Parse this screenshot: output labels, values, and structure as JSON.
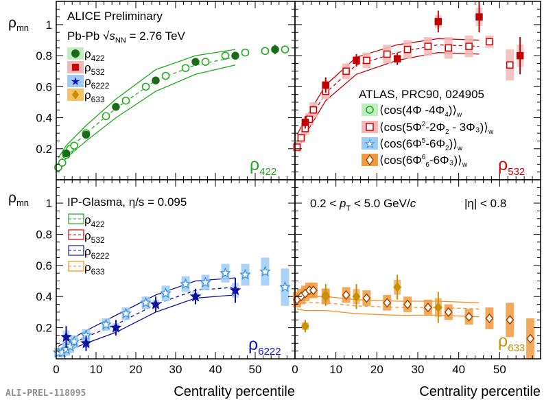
{
  "chart_data": [
    {
      "type": "scatter",
      "panel": "top-left",
      "xlim": [
        0,
        60
      ],
      "ylim": [
        0,
        1.15
      ],
      "yticks": [
        "0.2",
        "0.4",
        "0.6",
        "0.8",
        "1"
      ],
      "ylabel_main": "ρ",
      "ylabel_sub": "mn",
      "header": "ALICE Preliminary",
      "system_prefix": "Pb-Pb ",
      "system_sqrt": "√",
      "system_s": "s",
      "system_sub": "NN",
      "system_suffix": " = 2.76 TeV",
      "panel_label_main": "ρ",
      "panel_label_sub": "422",
      "panel_label_color": "#1fa81f",
      "color": "#1fa81f",
      "legend": [
        {
          "main": "ρ",
          "sub": "422",
          "color": "#1a6b1a",
          "marker": "circle"
        },
        {
          "main": "ρ",
          "sub": "532",
          "color": "#d40000",
          "marker": "square"
        },
        {
          "main": "ρ",
          "sub": "6222",
          "color": "#1010c8",
          "marker": "star"
        },
        {
          "main": "ρ",
          "sub": "633",
          "color": "#c79000",
          "marker": "diamond"
        }
      ],
      "alice": {
        "x": [
          2.5,
          7.5,
          15,
          25,
          35,
          45,
          55
        ],
        "y": [
          0.17,
          0.29,
          0.47,
          0.64,
          0.76,
          0.8,
          0.84
        ],
        "err": [
          0.01,
          0.01,
          0.01,
          0.01,
          0.01,
          0.02,
          0.03
        ]
      },
      "atlas": {
        "x": [
          0.5,
          1.5,
          2.5,
          3.5,
          4.5,
          7.5,
          12.5,
          17.5,
          22.5,
          27.5,
          32.5,
          37.5,
          42.5,
          47.5,
          52.5,
          57.5
        ],
        "y": [
          0.08,
          0.11,
          0.16,
          0.2,
          0.22,
          0.3,
          0.41,
          0.51,
          0.6,
          0.67,
          0.72,
          0.76,
          0.8,
          0.82,
          0.83,
          0.84
        ]
      },
      "model": {
        "x": [
          0.5,
          2.5,
          7.5,
          15,
          25,
          35,
          45
        ],
        "y": [
          0.1,
          0.18,
          0.3,
          0.46,
          0.64,
          0.74,
          0.79
        ],
        "upper": [
          0.14,
          0.22,
          0.35,
          0.52,
          0.71,
          0.8,
          0.84
        ],
        "lower": [
          0.06,
          0.14,
          0.25,
          0.4,
          0.57,
          0.68,
          0.74
        ]
      }
    },
    {
      "type": "scatter",
      "panel": "top-right",
      "xlim": [
        0,
        60
      ],
      "ylim": [
        0,
        1.15
      ],
      "header": "ATLAS, PRC90, 024905",
      "panel_label_main": "ρ",
      "panel_label_sub": "532",
      "panel_label_color": "#d40000",
      "color": "#d40000",
      "legend": [
        {
          "text": "⟨cos(4Φ⁻4Φ₄)⟩w",
          "marker": "circle",
          "color": "#1fa81f",
          "band": "#bfeebf"
        },
        {
          "text": "⟨cos(5Φ²-2Φ₂ - 3Φ₃)⟩w",
          "marker": "square",
          "color": "#d40000",
          "band": "#f5b8b8"
        },
        {
          "text": "⟨cos(6Φ⁵-6Φ₂)⟩w",
          "marker": "star",
          "color": "#3b8fe0",
          "band": "#9ccbf3"
        },
        {
          "text": "⟨cos(6Φ⁶₆-6Φ₃)⟩w",
          "marker": "diamond",
          "color": "#a34400",
          "band": "#f09a3e"
        }
      ],
      "legend_rows": [
        {
          "pre": "⟨cos(4Φ",
          "sup1": "",
          "mid": " -4Φ",
          "sub1": "4",
          "post": ")⟩",
          "w": "w"
        },
        {
          "pre": "⟨cos(5Φ",
          "sup1": "2",
          "mid": "-2Φ",
          "sub1": "2",
          "post": " - 3Φ₃)⟩",
          "w": "w"
        },
        {
          "pre": "⟨cos(6Φ",
          "sup1": "5",
          "mid": "-6Φ",
          "sub1": "2",
          "post": ")⟩",
          "w": "w"
        },
        {
          "pre": "⟨cos(6Φ",
          "sup1": "6",
          "mid": "6",
          "sub1": "",
          "post": "-6Φ₃)⟩",
          "w": "w"
        }
      ],
      "alice": {
        "x": [
          2.5,
          7.5,
          15,
          25,
          35,
          45,
          55
        ],
        "y": [
          0.37,
          0.61,
          0.77,
          0.78,
          1.02,
          1.05,
          0.8
        ],
        "err": [
          0.04,
          0.05,
          0.04,
          0.04,
          0.07,
          0.1,
          0.12
        ]
      },
      "atlas": {
        "x": [
          0.5,
          1.5,
          2.5,
          3.5,
          4.5,
          7.5,
          12.5,
          17.5,
          22.5,
          27.5,
          32.5,
          37.5,
          42.5,
          47.5,
          52.5
        ],
        "y": [
          0.21,
          0.27,
          0.33,
          0.39,
          0.45,
          0.57,
          0.7,
          0.77,
          0.81,
          0.84,
          0.86,
          0.85,
          0.86,
          0.89,
          0.74
        ],
        "syst": [
          0.03,
          0.03,
          0.04,
          0.04,
          0.05,
          0.05,
          0.05,
          0.05,
          0.06,
          0.06,
          0.06,
          0.07,
          0.07,
          0.04,
          0.1
        ]
      },
      "model": {
        "x": [
          0.5,
          2.5,
          7.5,
          15,
          25,
          35,
          45
        ],
        "y": [
          0.24,
          0.34,
          0.56,
          0.74,
          0.82,
          0.87,
          0.86
        ],
        "upper": [
          0.29,
          0.39,
          0.61,
          0.79,
          0.87,
          0.91,
          0.9
        ],
        "lower": [
          0.19,
          0.29,
          0.51,
          0.68,
          0.77,
          0.82,
          0.81
        ]
      }
    },
    {
      "type": "scatter",
      "panel": "bottom-left",
      "xlim": [
        0,
        60
      ],
      "ylim": [
        0,
        1.15
      ],
      "yticks": [
        "0.2",
        "0.4",
        "0.6",
        "0.8",
        "1"
      ],
      "xticks": [
        "0",
        "10",
        "20",
        "30",
        "40",
        "50"
      ],
      "xlabel": "Centrality percentile",
      "ylabel_main": "ρ",
      "ylabel_sub": "mn",
      "header": "IP-Glasma, η/s = 0.095",
      "panel_label_main": "ρ",
      "panel_label_sub": "6222",
      "panel_label_color": "#1010c8",
      "color": "#1010c8",
      "legend": [
        {
          "main": "ρ",
          "sub": "422",
          "color": "#1fa81f"
        },
        {
          "main": "ρ",
          "sub": "532",
          "color": "#d40000"
        },
        {
          "main": "ρ",
          "sub": "6222",
          "color": "#1010c8"
        },
        {
          "main": "ρ",
          "sub": "633",
          "color": "#ff8c1a"
        }
      ],
      "alice": {
        "x": [
          2.5,
          7.5,
          15,
          25,
          35,
          45
        ],
        "y": [
          0.14,
          0.1,
          0.2,
          0.35,
          0.4,
          0.44
        ],
        "err": [
          0.07,
          0.05,
          0.05,
          0.05,
          0.05,
          0.08
        ]
      },
      "atlas": {
        "x": [
          0.5,
          1.5,
          2.5,
          3.5,
          4.5,
          7.5,
          12.5,
          17.5,
          22.5,
          27.5,
          32.5,
          37.5,
          42.5,
          47.5,
          52.5,
          57.5
        ],
        "y": [
          0.04,
          0.04,
          0.06,
          0.08,
          0.11,
          0.15,
          0.22,
          0.29,
          0.36,
          0.42,
          0.48,
          0.49,
          0.55,
          0.54,
          0.56,
          0.46
        ],
        "syst": [
          0.03,
          0.03,
          0.04,
          0.04,
          0.04,
          0.04,
          0.04,
          0.04,
          0.04,
          0.05,
          0.05,
          0.05,
          0.06,
          0.07,
          0.09,
          0.12
        ]
      },
      "model": {
        "x": [
          0.5,
          2.5,
          7.5,
          15,
          25,
          35,
          45
        ],
        "y": [
          0.05,
          0.08,
          0.14,
          0.22,
          0.35,
          0.44,
          0.46
        ],
        "upper": [
          0.08,
          0.11,
          0.18,
          0.28,
          0.41,
          0.5,
          0.52
        ],
        "lower": [
          0.02,
          0.05,
          0.1,
          0.17,
          0.3,
          0.39,
          0.41
        ]
      }
    },
    {
      "type": "scatter",
      "panel": "bottom-right",
      "xlim": [
        0,
        60
      ],
      "ylim": [
        0,
        1.15
      ],
      "xticks": [
        "0",
        "10",
        "20",
        "30",
        "40",
        "50"
      ],
      "xlabel": "Centrality percentile",
      "header_pre": "0.2 < ",
      "header_p": "p",
      "header_sub": "T",
      "header_post": " < 5.0 GeV/",
      "header_c": "c",
      "header_eta": "|η| < 0.8",
      "panel_label_main": "ρ",
      "panel_label_sub": "633",
      "panel_label_color": "#c79000",
      "color": "#c79000",
      "alice": {
        "x": [
          2.5,
          7.5,
          15,
          25,
          35
        ],
        "y": [
          0.21,
          0.41,
          0.4,
          0.46,
          0.33
        ],
        "err": [
          0.04,
          0.07,
          0.08,
          0.08,
          0.1
        ]
      },
      "atlas": {
        "x": [
          0.5,
          1.5,
          2.5,
          3.5,
          4.5,
          7.5,
          12.5,
          17.5,
          22.5,
          27.5,
          32.5,
          37.5,
          42.5,
          47.5,
          52.5,
          57.5
        ],
        "y": [
          0.38,
          0.4,
          0.42,
          0.44,
          0.44,
          0.4,
          0.41,
          0.39,
          0.36,
          0.35,
          0.33,
          0.3,
          0.27,
          0.26,
          0.25,
          0.13
        ],
        "syst": [
          0.05,
          0.05,
          0.05,
          0.05,
          0.05,
          0.05,
          0.05,
          0.05,
          0.05,
          0.05,
          0.05,
          0.05,
          0.05,
          0.07,
          0.11,
          0.13
        ]
      },
      "model": {
        "x": [
          0.5,
          2.5,
          7.5,
          15,
          25,
          35,
          45
        ],
        "y": [
          0.37,
          0.36,
          0.36,
          0.34,
          0.33,
          0.33,
          0.32
        ],
        "upper": [
          0.41,
          0.4,
          0.4,
          0.38,
          0.37,
          0.37,
          0.36
        ],
        "lower": [
          0.32,
          0.31,
          0.31,
          0.29,
          0.28,
          0.28,
          0.27
        ]
      }
    }
  ],
  "footer": "ALI-PREL-118095"
}
